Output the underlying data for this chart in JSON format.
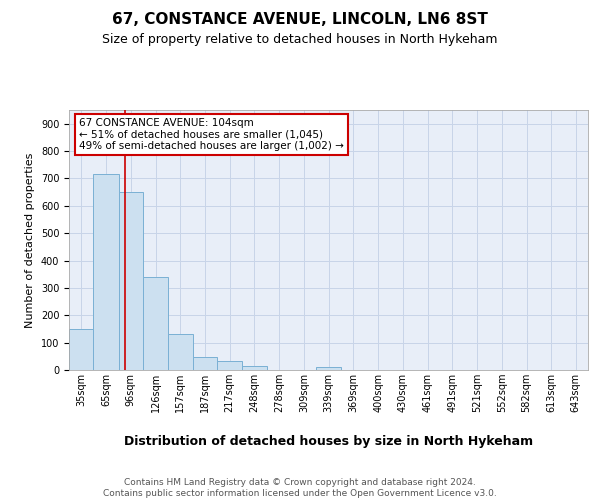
{
  "title1": "67, CONSTANCE AVENUE, LINCOLN, LN6 8ST",
  "title2": "Size of property relative to detached houses in North Hykeham",
  "xlabel": "Distribution of detached houses by size in North Hykeham",
  "ylabel": "Number of detached properties",
  "bin_labels": [
    "35sqm",
    "65sqm",
    "96sqm",
    "126sqm",
    "157sqm",
    "187sqm",
    "217sqm",
    "248sqm",
    "278sqm",
    "309sqm",
    "339sqm",
    "369sqm",
    "400sqm",
    "430sqm",
    "461sqm",
    "491sqm",
    "521sqm",
    "552sqm",
    "582sqm",
    "613sqm",
    "643sqm"
  ],
  "bin_left_edges": [
    35,
    65,
    96,
    126,
    157,
    187,
    217,
    248,
    278,
    309,
    339,
    369,
    400,
    430,
    461,
    491,
    521,
    552,
    582,
    613,
    643
  ],
  "bin_widths": [
    30,
    31,
    30,
    31,
    30,
    30,
    31,
    30,
    31,
    30,
    30,
    31,
    30,
    31,
    30,
    30,
    31,
    30,
    31,
    30,
    30
  ],
  "bar_heights": [
    150,
    715,
    650,
    338,
    130,
    46,
    33,
    14,
    0,
    0,
    10,
    0,
    0,
    0,
    0,
    0,
    0,
    0,
    0,
    0,
    0
  ],
  "bar_facecolor": "#cce0f0",
  "bar_edgecolor": "#7ab0d4",
  "grid_color": "#c8d4e8",
  "background_color": "#e8eef8",
  "red_line_x": 104,
  "annotation_text": "67 CONSTANCE AVENUE: 104sqm\n← 51% of detached houses are smaller (1,045)\n49% of semi-detached houses are larger (1,002) →",
  "annotation_box_color": "#ffffff",
  "annotation_box_edgecolor": "#cc0000",
  "ylim": [
    0,
    950
  ],
  "yticks": [
    0,
    100,
    200,
    300,
    400,
    500,
    600,
    700,
    800,
    900
  ],
  "footer": "Contains HM Land Registry data © Crown copyright and database right 2024.\nContains public sector information licensed under the Open Government Licence v3.0.",
  "title1_fontsize": 11,
  "title2_fontsize": 9,
  "ylabel_fontsize": 8,
  "xlabel_fontsize": 9,
  "tick_fontsize": 7,
  "footer_fontsize": 6.5,
  "annotation_fontsize": 7.5
}
